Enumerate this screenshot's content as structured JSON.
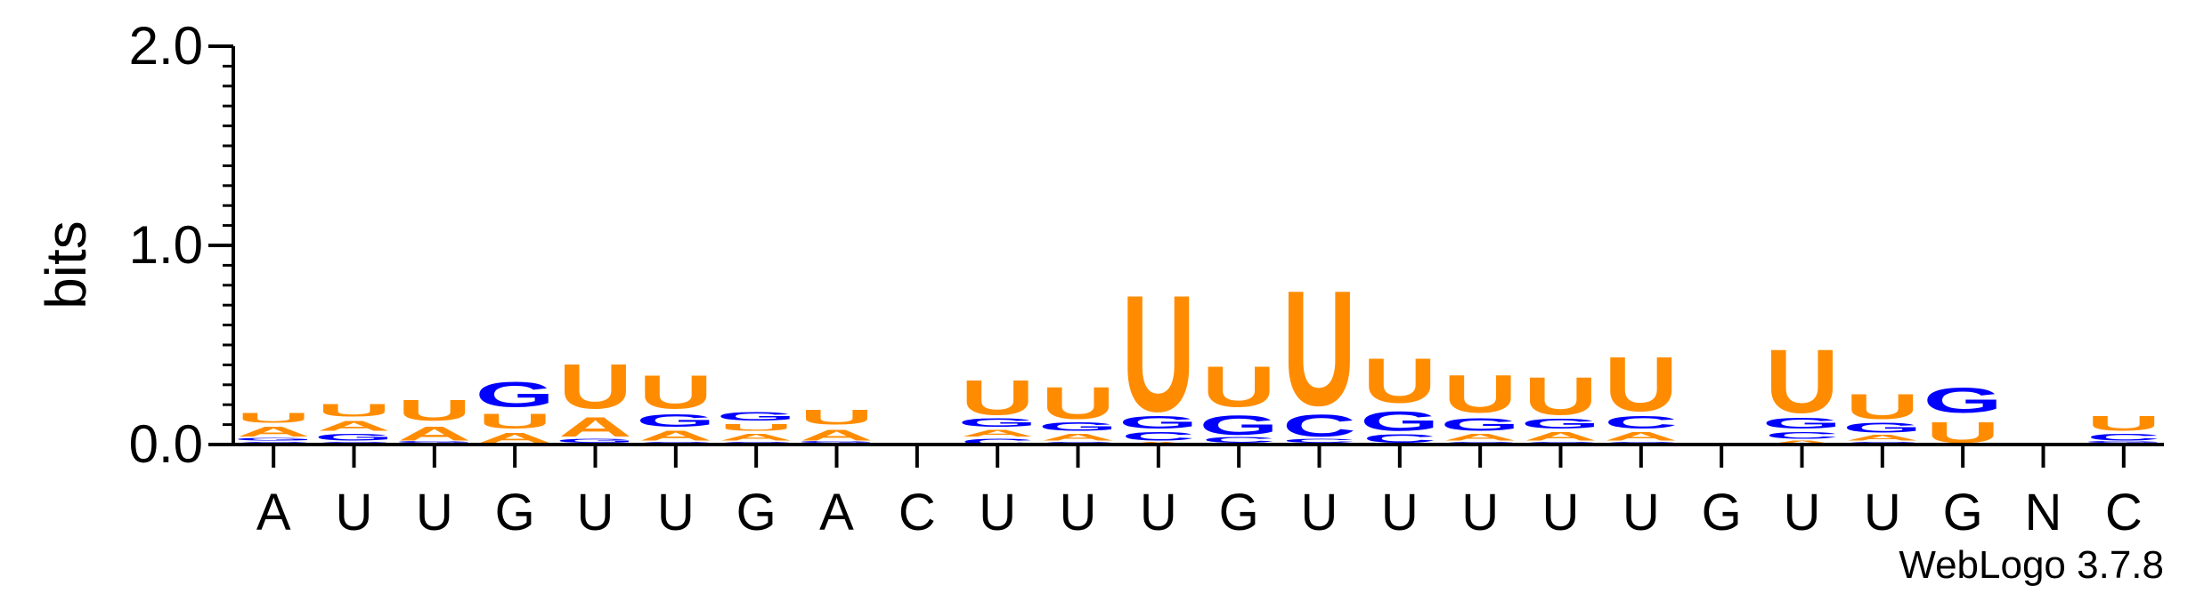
{
  "chart_data": {
    "type": "sequence-logo",
    "title": "",
    "xlabel": "",
    "ylabel": "bits",
    "ylim": [
      0,
      2.0
    ],
    "y_ticks": [
      {
        "value": 0,
        "label": "0.0"
      },
      {
        "value": 1,
        "label": "1.0"
      },
      {
        "value": 2,
        "label": "2.0"
      }
    ],
    "colors": {
      "U": "#FF8C00",
      "A": "#FF8C00",
      "G": "#0000FF",
      "C": "#0000FF",
      "N": "#000000"
    },
    "positions": [
      {
        "label": "A",
        "stack": [
          {
            "l": "C",
            "h": 0.02
          },
          {
            "l": "G",
            "h": 0.02
          },
          {
            "l": "A",
            "h": 0.07
          },
          {
            "l": "U",
            "h": 0.07
          }
        ]
      },
      {
        "label": "U",
        "stack": [
          {
            "l": "C",
            "h": 0.02
          },
          {
            "l": "G",
            "h": 0.05
          },
          {
            "l": "A",
            "h": 0.07
          },
          {
            "l": "U",
            "h": 0.09
          }
        ]
      },
      {
        "label": "U",
        "stack": [
          {
            "l": "C",
            "h": 0.01
          },
          {
            "l": "G",
            "h": 0.01
          },
          {
            "l": "A",
            "h": 0.1
          },
          {
            "l": "U",
            "h": 0.15
          }
        ]
      },
      {
        "label": "G",
        "stack": [
          {
            "l": "C",
            "h": 0.01
          },
          {
            "l": "A",
            "h": 0.07
          },
          {
            "l": "U",
            "h": 0.11
          },
          {
            "l": "G",
            "h": 0.18
          }
        ]
      },
      {
        "label": "U",
        "stack": [
          {
            "l": "C",
            "h": 0.01
          },
          {
            "l": "G",
            "h": 0.03
          },
          {
            "l": "A",
            "h": 0.14
          },
          {
            "l": "U",
            "h": 0.32
          }
        ]
      },
      {
        "label": "U",
        "stack": [
          {
            "l": "C",
            "h": 0.02
          },
          {
            "l": "A",
            "h": 0.07
          },
          {
            "l": "G",
            "h": 0.09
          },
          {
            "l": "U",
            "h": 0.24
          }
        ]
      },
      {
        "label": "G",
        "stack": [
          {
            "l": "C",
            "h": 0.02
          },
          {
            "l": "A",
            "h": 0.05
          },
          {
            "l": "U",
            "h": 0.05
          },
          {
            "l": "G",
            "h": 0.06
          }
        ]
      },
      {
        "label": "A",
        "stack": [
          {
            "l": "C",
            "h": 0.01
          },
          {
            "l": "G",
            "h": 0.01
          },
          {
            "l": "A",
            "h": 0.08
          },
          {
            "l": "U",
            "h": 0.11
          }
        ]
      },
      {
        "label": "C",
        "stack": []
      },
      {
        "label": "U",
        "stack": [
          {
            "l": "C",
            "h": 0.04
          },
          {
            "l": "A",
            "h": 0.05
          },
          {
            "l": "G",
            "h": 0.06
          },
          {
            "l": "U",
            "h": 0.25
          }
        ]
      },
      {
        "label": "U",
        "stack": [
          {
            "l": "C",
            "h": 0.02
          },
          {
            "l": "A",
            "h": 0.05
          },
          {
            "l": "G",
            "h": 0.06
          },
          {
            "l": "U",
            "h": 0.23
          }
        ]
      },
      {
        "label": "U",
        "stack": [
          {
            "l": "A",
            "h": 0.02
          },
          {
            "l": "C",
            "h": 0.06
          },
          {
            "l": "G",
            "h": 0.09
          },
          {
            "l": "U",
            "h": 0.84
          }
        ]
      },
      {
        "label": "G",
        "stack": [
          {
            "l": "A",
            "h": 0.01
          },
          {
            "l": "C",
            "h": 0.04
          },
          {
            "l": "G",
            "h": 0.14
          },
          {
            "l": "U",
            "h": 0.29
          }
        ]
      },
      {
        "label": "U",
        "stack": [
          {
            "l": "A",
            "h": 0.01
          },
          {
            "l": "C",
            "h": 0.03
          },
          {
            "l": "C",
            "h": 0.16
          },
          {
            "l": "U",
            "h": 0.83
          }
        ]
      },
      {
        "label": "U",
        "stack": [
          {
            "l": "A",
            "h": 0.01
          },
          {
            "l": "C",
            "h": 0.06
          },
          {
            "l": "G",
            "h": 0.14
          },
          {
            "l": "U",
            "h": 0.32
          }
        ]
      },
      {
        "label": "U",
        "stack": [
          {
            "l": "C",
            "h": 0.02
          },
          {
            "l": "A",
            "h": 0.05
          },
          {
            "l": "G",
            "h": 0.09
          },
          {
            "l": "U",
            "h": 0.27
          }
        ]
      },
      {
        "label": "U",
        "stack": [
          {
            "l": "C",
            "h": 0.02
          },
          {
            "l": "A",
            "h": 0.06
          },
          {
            "l": "G",
            "h": 0.07
          },
          {
            "l": "U",
            "h": 0.27
          }
        ]
      },
      {
        "label": "U",
        "stack": [
          {
            "l": "C",
            "h": 0.02
          },
          {
            "l": "A",
            "h": 0.06
          },
          {
            "l": "C",
            "h": 0.09
          },
          {
            "l": "U",
            "h": 0.39
          }
        ]
      },
      {
        "label": "G",
        "stack": []
      },
      {
        "label": "U",
        "stack": [
          {
            "l": "A",
            "h": 0.03
          },
          {
            "l": "C",
            "h": 0.05
          },
          {
            "l": "G",
            "h": 0.08
          },
          {
            "l": "U",
            "h": 0.46
          }
        ]
      },
      {
        "label": "U",
        "stack": [
          {
            "l": "C",
            "h": 0.02
          },
          {
            "l": "A",
            "h": 0.04
          },
          {
            "l": "G",
            "h": 0.07
          },
          {
            "l": "U",
            "h": 0.18
          }
        ]
      },
      {
        "label": "G",
        "stack": [
          {
            "l": "C",
            "h": 0.01
          },
          {
            "l": "U",
            "h": 0.15
          },
          {
            "l": "G",
            "h": 0.18
          }
        ]
      },
      {
        "label": "N",
        "stack": []
      },
      {
        "label": "C",
        "stack": [
          {
            "l": "A",
            "h": 0.01
          },
          {
            "l": "G",
            "h": 0.01
          },
          {
            "l": "C",
            "h": 0.05
          },
          {
            "l": "U",
            "h": 0.11
          }
        ]
      }
    ],
    "credit": "WebLogo 3.7.8"
  }
}
